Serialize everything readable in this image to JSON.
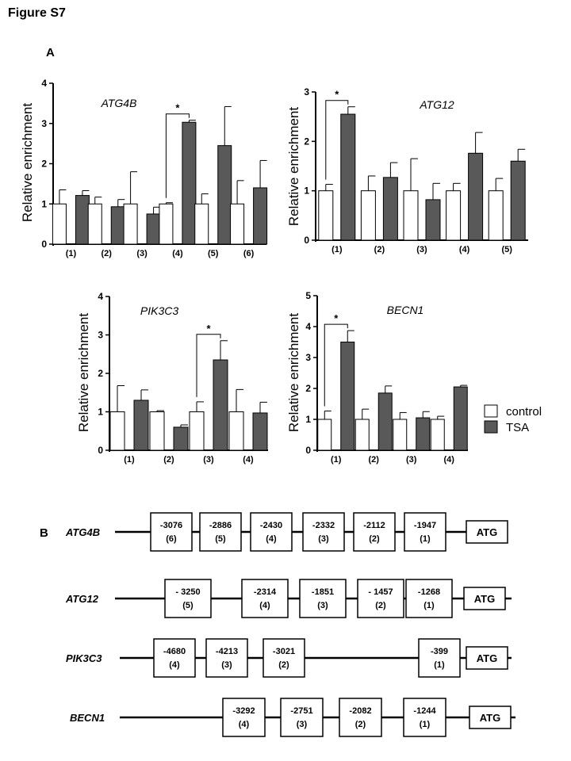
{
  "figure_title": "Figure S7",
  "panel_a_label": "A",
  "panel_b_label": "B",
  "legend": {
    "control": "control",
    "treated": "TSA"
  },
  "colors": {
    "control": "#ffffff",
    "treated": "#595959",
    "axis": "#000000"
  },
  "chart_data": [
    {
      "type": "bar",
      "gene": "ATG4B",
      "ylabel": "Relative enrichment",
      "ylim": [
        0,
        4
      ],
      "yticks": [
        "0",
        "1",
        "2",
        "3",
        "4"
      ],
      "categories": [
        "(1)",
        "(2)",
        "(3)",
        "(4)",
        "(5)",
        "(6)"
      ],
      "series": [
        {
          "name": "control",
          "values": [
            1,
            1,
            1,
            1,
            1,
            1
          ],
          "errors": [
            0.35,
            0.17,
            0.8,
            0.03,
            0.25,
            0.58
          ]
        },
        {
          "name": "TSA",
          "values": [
            1.21,
            0.93,
            0.75,
            3.03,
            2.45,
            1.4
          ],
          "errors": [
            0.12,
            0.18,
            0.17,
            0.05,
            0.97,
            0.68
          ]
        }
      ],
      "significance": [
        {
          "category": "(4)",
          "label": "*"
        }
      ]
    },
    {
      "type": "bar",
      "gene": "ATG12",
      "ylabel": "Relative enrichment",
      "ylim": [
        0,
        3
      ],
      "yticks": [
        "0",
        "1",
        "2",
        "3"
      ],
      "categories": [
        "(1)",
        "(2)",
        "(3)",
        "(4)",
        "(5)"
      ],
      "series": [
        {
          "name": "control",
          "values": [
            1,
            1,
            1,
            1,
            1
          ],
          "errors": [
            0.13,
            0.3,
            0.65,
            0.15,
            0.25
          ]
        },
        {
          "name": "TSA",
          "values": [
            2.55,
            1.27,
            0.82,
            1.76,
            1.6
          ],
          "errors": [
            0.15,
            0.3,
            0.33,
            0.42,
            0.24
          ]
        }
      ],
      "significance": [
        {
          "category": "(1)",
          "label": "*"
        }
      ]
    },
    {
      "type": "bar",
      "gene": "PIK3C3",
      "ylabel": "Relative enrichment",
      "ylim": [
        0,
        4
      ],
      "yticks": [
        "0",
        "1",
        "2",
        "3",
        "4"
      ],
      "categories": [
        "(1)",
        "(2)",
        "(3)",
        "(4)"
      ],
      "series": [
        {
          "name": "control",
          "values": [
            1,
            1,
            1,
            1
          ],
          "errors": [
            0.68,
            0.03,
            0.26,
            0.58
          ]
        },
        {
          "name": "TSA",
          "values": [
            1.3,
            0.6,
            2.35,
            0.97
          ],
          "errors": [
            0.27,
            0.06,
            0.5,
            0.28
          ]
        }
      ],
      "significance": [
        {
          "category": "(3)",
          "label": "*"
        }
      ]
    },
    {
      "type": "bar",
      "gene": "BECN1",
      "ylabel": "Relative enrichment",
      "ylim": [
        0,
        5
      ],
      "yticks": [
        "0",
        "1",
        "2",
        "3",
        "4",
        "5"
      ],
      "categories": [
        "(1)",
        "(2)",
        "(3)",
        "(4)"
      ],
      "series": [
        {
          "name": "control",
          "values": [
            1,
            1,
            1,
            1
          ],
          "errors": [
            0.27,
            0.33,
            0.22,
            0.1
          ]
        },
        {
          "name": "TSA",
          "values": [
            3.5,
            1.85,
            1.05,
            2.05
          ],
          "errors": [
            0.37,
            0.23,
            0.2,
            0.05
          ]
        }
      ],
      "significance": [
        {
          "category": "(1)",
          "label": "*"
        }
      ]
    }
  ],
  "promoter_maps": [
    {
      "gene": "ATG4B",
      "end_label": "ATG",
      "sites": [
        {
          "position": "-3076",
          "index": "(6)"
        },
        {
          "position": "-2886",
          "index": "(5)"
        },
        {
          "position": "-2430",
          "index": "(4)"
        },
        {
          "position": "-2332",
          "index": "(3)"
        },
        {
          "position": "-2112",
          "index": "(2)"
        },
        {
          "position": "-1947",
          "index": "(1)"
        }
      ]
    },
    {
      "gene": "ATG12",
      "end_label": "ATG",
      "sites": [
        {
          "position": "- 3250",
          "index": "(5)"
        },
        {
          "position": "-2314",
          "index": "(4)"
        },
        {
          "position": "-1851",
          "index": "(3)"
        },
        {
          "position": "- 1457",
          "index": "(2)"
        },
        {
          "position": "-1268",
          "index": "(1)"
        }
      ]
    },
    {
      "gene": "PIK3C3",
      "end_label": "ATG",
      "sites": [
        {
          "position": "-4680",
          "index": "(4)"
        },
        {
          "position": "-4213",
          "index": "(3)"
        },
        {
          "position": "-3021",
          "index": "(2)"
        },
        {
          "position": "-399",
          "index": "(1)"
        }
      ]
    },
    {
      "gene": "BECN1",
      "end_label": "ATG",
      "sites": [
        {
          "position": "-3292",
          "index": "(4)"
        },
        {
          "position": "-2751",
          "index": "(3)"
        },
        {
          "position": "-2082",
          "index": "(2)"
        },
        {
          "position": "-1244",
          "index": "(1)"
        }
      ]
    }
  ]
}
